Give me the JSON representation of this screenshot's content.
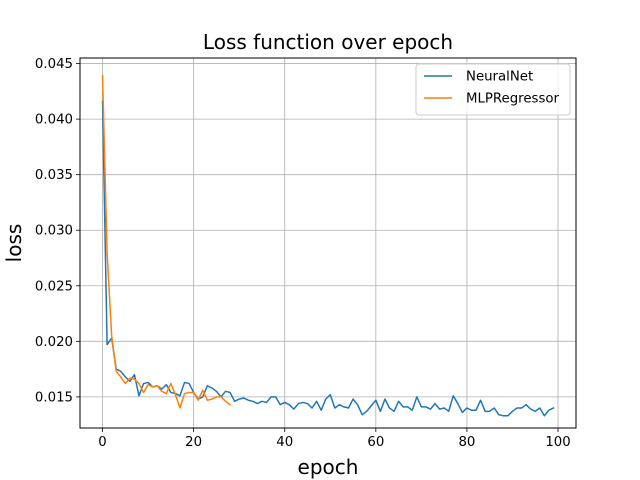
{
  "chart_data": {
    "type": "line",
    "title": "Loss function over epoch",
    "xlabel": "epoch",
    "ylabel": "loss",
    "xlim": [
      -4.95,
      103.95
    ],
    "ylim": [
      0.0122,
      0.0455
    ],
    "xticks": [
      0,
      20,
      40,
      60,
      80,
      100
    ],
    "xtick_labels": [
      "0",
      "20",
      "40",
      "60",
      "80",
      "100"
    ],
    "yticks": [
      0.015,
      0.02,
      0.025,
      0.03,
      0.035,
      0.04,
      0.045
    ],
    "ytick_labels": [
      "0.015",
      "0.020",
      "0.025",
      "0.030",
      "0.035",
      "0.040",
      "0.045"
    ],
    "grid": true,
    "legend_position": "top-right",
    "series": [
      {
        "name": "NeuralNet",
        "color": "#1f77b4",
        "x": [
          0,
          1,
          2,
          3,
          4,
          5,
          6,
          7,
          8,
          9,
          10,
          11,
          12,
          13,
          14,
          15,
          16,
          17,
          18,
          19,
          20,
          21,
          22,
          23,
          24,
          25,
          26,
          27,
          28,
          29,
          30,
          31,
          32,
          33,
          34,
          35,
          36,
          37,
          38,
          39,
          40,
          41,
          42,
          43,
          44,
          45,
          46,
          47,
          48,
          49,
          50,
          51,
          52,
          53,
          54,
          55,
          56,
          57,
          58,
          59,
          60,
          61,
          62,
          63,
          64,
          65,
          66,
          67,
          68,
          69,
          70,
          71,
          72,
          73,
          74,
          75,
          76,
          77,
          78,
          79,
          80,
          81,
          82,
          83,
          84,
          85,
          86,
          87,
          88,
          89,
          90,
          91,
          92,
          93,
          94,
          95,
          96,
          97,
          98,
          99
        ],
        "values": [
          0.0416,
          0.0197,
          0.0203,
          0.0175,
          0.0173,
          0.0168,
          0.0164,
          0.017,
          0.0151,
          0.0162,
          0.0163,
          0.0159,
          0.016,
          0.0157,
          0.0161,
          0.0154,
          0.0153,
          0.0151,
          0.0163,
          0.0162,
          0.0154,
          0.0148,
          0.015,
          0.016,
          0.0158,
          0.0155,
          0.015,
          0.0155,
          0.0154,
          0.0146,
          0.0148,
          0.0149,
          0.0147,
          0.0146,
          0.0144,
          0.0146,
          0.0145,
          0.015,
          0.015,
          0.0143,
          0.0145,
          0.0143,
          0.0139,
          0.0144,
          0.0145,
          0.0144,
          0.014,
          0.0146,
          0.0138,
          0.0148,
          0.0152,
          0.014,
          0.0143,
          0.0141,
          0.014,
          0.0148,
          0.0143,
          0.0134,
          0.0137,
          0.0142,
          0.0147,
          0.0137,
          0.0148,
          0.014,
          0.0137,
          0.0146,
          0.0141,
          0.0141,
          0.0138,
          0.015,
          0.0141,
          0.0141,
          0.0139,
          0.0144,
          0.0139,
          0.014,
          0.0137,
          0.0151,
          0.0144,
          0.0136,
          0.014,
          0.0138,
          0.0138,
          0.0147,
          0.0137,
          0.0137,
          0.014,
          0.0134,
          0.0133,
          0.0133,
          0.0137,
          0.014,
          0.014,
          0.0143,
          0.0139,
          0.0137,
          0.014,
          0.0133,
          0.0138,
          0.014
        ]
      },
      {
        "name": "MLPRegressor",
        "color": "#ff7f0e",
        "x": [
          0,
          1,
          2,
          3,
          4,
          5,
          6,
          7,
          8,
          9,
          10,
          11,
          12,
          13,
          14,
          15,
          16,
          17,
          18,
          19,
          20,
          21,
          22,
          23,
          24,
          25,
          26,
          27,
          28
        ],
        "values": [
          0.0439,
          0.028,
          0.0205,
          0.0173,
          0.0168,
          0.0162,
          0.0167,
          0.0166,
          0.0162,
          0.0154,
          0.0161,
          0.0159,
          0.016,
          0.0155,
          0.0153,
          0.0162,
          0.0152,
          0.014,
          0.0153,
          0.0154,
          0.0154,
          0.0147,
          0.0156,
          0.0147,
          0.0148,
          0.015,
          0.015,
          0.0146,
          0.0143
        ]
      }
    ]
  }
}
